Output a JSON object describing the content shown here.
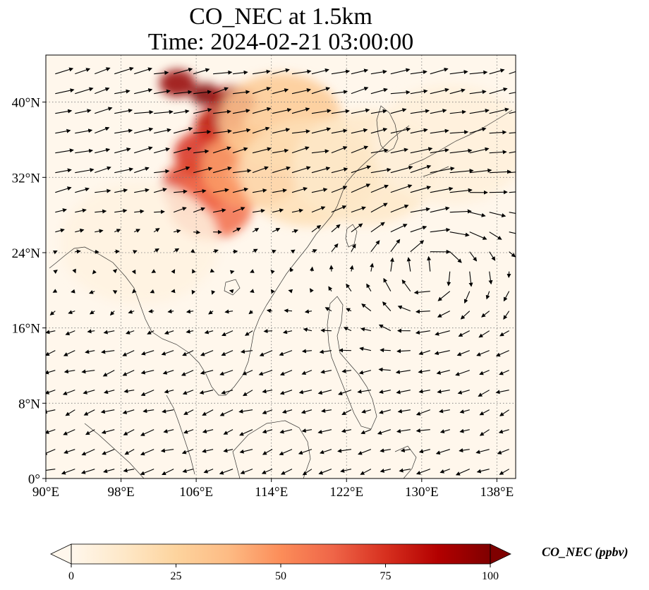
{
  "figure": {
    "title_line1": "CO_NEC at 1.5km",
    "title_line2": "Time: 2024-02-21 03:00:00"
  },
  "chart_data": {
    "type": "heatmap",
    "title": "CO_NEC at 1.5km\nTime: 2024-02-21 03:00:00",
    "variable": "CO_NEC",
    "level": "1.5km",
    "time": "2024-02-21 03:00:00",
    "xlabel": "",
    "ylabel": "",
    "xlim": [
      90,
      140
    ],
    "ylim": [
      0,
      45
    ],
    "x_ticks": [
      90,
      98,
      106,
      114,
      122,
      130,
      138
    ],
    "x_tick_labels": [
      "90°E",
      "98°E",
      "106°E",
      "114°E",
      "122°E",
      "130°E",
      "138°E"
    ],
    "y_ticks": [
      0,
      8,
      16,
      24,
      32,
      40
    ],
    "y_tick_labels": [
      "0°",
      "8°N",
      "16°N",
      "24°N",
      "32°N",
      "40°N"
    ],
    "grid": "dotted",
    "colormap": "OrRd",
    "colorbar": {
      "label": "CO_NEC (ppbv)",
      "min": 0,
      "max": 100,
      "ticks": [
        0,
        25,
        50,
        75,
        100
      ],
      "tick_labels": [
        "0",
        "25",
        "50",
        "75",
        "100"
      ],
      "extend": "both",
      "colors": [
        "#fff7ec",
        "#fee8c8",
        "#fdd49e",
        "#fdbb84",
        "#fc8d59",
        "#ef6548",
        "#d7301f",
        "#b30000",
        "#7f0000"
      ]
    },
    "plume": [
      {
        "lon": 107,
        "lat": 40.8,
        "value": 100
      },
      {
        "lon": 104,
        "lat": 42.0,
        "value": 95
      },
      {
        "lon": 110,
        "lat": 40.0,
        "value": 90
      },
      {
        "lon": 108.5,
        "lat": 37.5,
        "value": 85
      },
      {
        "lon": 107,
        "lat": 34.5,
        "value": 75
      },
      {
        "lon": 106,
        "lat": 31.0,
        "value": 70
      },
      {
        "lon": 107.5,
        "lat": 28.8,
        "value": 60
      },
      {
        "lon": 112,
        "lat": 33.0,
        "value": 45
      },
      {
        "lon": 115,
        "lat": 38.0,
        "value": 30
      },
      {
        "lon": 118,
        "lat": 32.5,
        "value": 18
      },
      {
        "lon": 124,
        "lat": 33.0,
        "value": 12
      },
      {
        "lon": 133,
        "lat": 35.5,
        "value": 6
      },
      {
        "lon": 100,
        "lat": 25.0,
        "value": 4
      }
    ],
    "wind_field": {
      "type": "quiver",
      "regimes": [
        {
          "region": "north",
          "lat_min": 30,
          "u": 9,
          "v": 2
        },
        {
          "region": "tropical_west",
          "lat_max": 20,
          "u": -6,
          "v": -2
        },
        {
          "region": "anticyclone_east",
          "center_lon": 131,
          "center_lat": 22,
          "rotation": "clockwise"
        }
      ]
    }
  }
}
